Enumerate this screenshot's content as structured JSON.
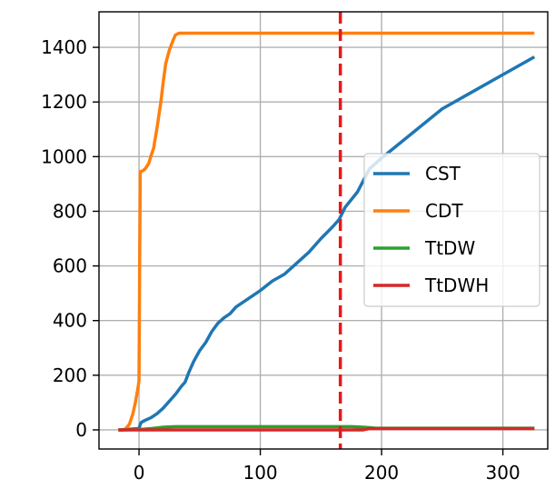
{
  "chart_data": {
    "type": "line",
    "xlim": [
      -33,
      337
    ],
    "ylim": [
      -70,
      1530
    ],
    "grid": true,
    "x_ticks": [
      0,
      100,
      200,
      300
    ],
    "y_ticks": [
      0,
      200,
      400,
      600,
      800,
      1000,
      1200,
      1400
    ],
    "x_tick_labels": [
      "0",
      "100",
      "200",
      "300"
    ],
    "y_tick_labels": [
      "0",
      "200",
      "400",
      "600",
      "800",
      "1000",
      "1200",
      "1400"
    ],
    "vline": {
      "x": 166,
      "color": "#e41a1c",
      "style": "dashed"
    },
    "legend_position": "right",
    "series": [
      {
        "name": "CST",
        "color": "#1f77b4",
        "x": [
          -17,
          0,
          1,
          2,
          5,
          10,
          15,
          20,
          25,
          30,
          35,
          38,
          41,
          45,
          50,
          55,
          60,
          65,
          70,
          75,
          80,
          90,
          100,
          110,
          120,
          130,
          140,
          150,
          160,
          165,
          170,
          180,
          190,
          200,
          250,
          300,
          326
        ],
        "y": [
          0,
          5,
          20,
          28,
          35,
          45,
          60,
          80,
          105,
          130,
          160,
          175,
          210,
          250,
          290,
          320,
          360,
          390,
          410,
          425,
          450,
          480,
          510,
          545,
          570,
          610,
          650,
          700,
          745,
          770,
          815,
          870,
          955,
          995,
          1175,
          1300,
          1365
        ]
      },
      {
        "name": "CDT",
        "color": "#ff7f0e",
        "x": [
          -17,
          -12,
          -8,
          -5,
          -3,
          -1,
          0,
          0.5,
          1,
          3,
          5,
          8,
          10,
          12,
          15,
          18,
          20,
          22,
          25,
          28,
          30,
          33,
          40,
          60,
          100,
          326
        ],
        "y": [
          0,
          0,
          20,
          60,
          100,
          150,
          180,
          600,
          945,
          948,
          955,
          975,
          1005,
          1030,
          1110,
          1200,
          1275,
          1340,
          1390,
          1425,
          1445,
          1452,
          1452,
          1452,
          1452,
          1452
        ]
      },
      {
        "name": "TtDW",
        "color": "#2ca02c",
        "x": [
          -17,
          0,
          10,
          20,
          30,
          40,
          100,
          150,
          175,
          185,
          190,
          195,
          326
        ],
        "y": [
          0,
          1,
          5,
          10,
          12,
          12,
          12,
          12,
          12,
          10,
          8,
          6,
          6
        ]
      },
      {
        "name": "TtDWH",
        "color": "#d62728",
        "x": [
          -17,
          0,
          50,
          100,
          150,
          185,
          190,
          326
        ],
        "y": [
          0,
          0,
          0,
          0,
          0,
          0,
          5,
          5
        ]
      }
    ]
  }
}
